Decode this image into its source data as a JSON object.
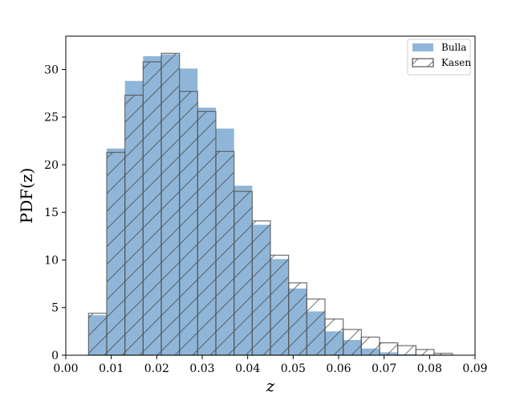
{
  "chart_data": {
    "type": "bar",
    "subtype": "histogram",
    "title": "",
    "xlabel": "z",
    "ylabel": "PDF(z)",
    "xlim": [
      0.0,
      0.09
    ],
    "ylim": [
      0,
      33.5
    ],
    "xticks": [
      "0.00",
      "0.01",
      "0.02",
      "0.03",
      "0.04",
      "0.05",
      "0.06",
      "0.07",
      "0.08",
      "0.09"
    ],
    "yticks": [
      "0",
      "5",
      "10",
      "15",
      "20",
      "25",
      "30"
    ],
    "grid": false,
    "legend_position": "top-right",
    "bin_edges": [
      0.005,
      0.009,
      0.013,
      0.017,
      0.021,
      0.025,
      0.029,
      0.033,
      0.037,
      0.041,
      0.045,
      0.049,
      0.053,
      0.057,
      0.061,
      0.065,
      0.069,
      0.073,
      0.077,
      0.081,
      0.085
    ],
    "series": [
      {
        "name": "Bulla",
        "style": "filled",
        "color": "#8fb6d8",
        "values": [
          4.2,
          21.7,
          28.8,
          31.4,
          31.6,
          30.1,
          26.0,
          23.8,
          17.8,
          13.7,
          10.1,
          7.0,
          4.6,
          2.5,
          1.6,
          0.7,
          0.3,
          0.1,
          0.05,
          0.0
        ]
      },
      {
        "name": "Kasen",
        "style": "hatched",
        "color": "#555555",
        "values": [
          4.4,
          21.3,
          27.3,
          30.8,
          31.7,
          27.7,
          25.6,
          21.4,
          17.2,
          14.1,
          10.5,
          7.6,
          5.9,
          3.8,
          2.7,
          1.9,
          1.3,
          1.0,
          0.6,
          0.2
        ]
      }
    ]
  }
}
